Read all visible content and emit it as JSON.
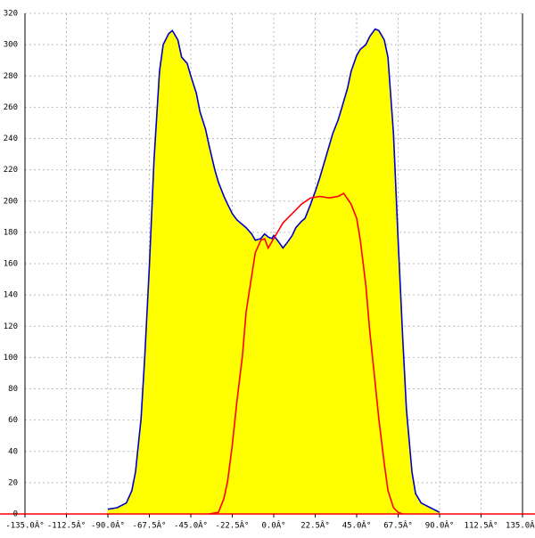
{
  "chart_data": {
    "type": "area",
    "xlim": [
      -135,
      135
    ],
    "xticks": [
      {
        "value": -135,
        "label": "-135.0Â°"
      },
      {
        "value": -112.5,
        "label": "-112.5Â°"
      },
      {
        "value": -90,
        "label": "-90.0Â°"
      },
      {
        "value": -67.5,
        "label": "-67.5Â°"
      },
      {
        "value": -45,
        "label": "-45.0Â°"
      },
      {
        "value": -22.5,
        "label": "-22.5Â°"
      },
      {
        "value": 0,
        "label": "0.0Â°"
      },
      {
        "value": 22.5,
        "label": "22.5Â°"
      },
      {
        "value": 45,
        "label": "45.0Â°"
      },
      {
        "value": 67.5,
        "label": "67.5Â°"
      },
      {
        "value": 90,
        "label": "90.0Â°"
      },
      {
        "value": 112.5,
        "label": "112.5Â°"
      },
      {
        "value": 135,
        "label": "135.0Â°"
      }
    ],
    "ylim": [
      0,
      320
    ],
    "yticks": [
      0,
      20,
      40,
      60,
      80,
      100,
      120,
      140,
      160,
      180,
      200,
      220,
      240,
      260,
      280,
      300,
      320
    ],
    "grid": true,
    "series": [
      {
        "color": "#0000cc",
        "fill": "#ffff00",
        "x": [
          -90,
          -85,
          -80,
          -77,
          -75,
          -72,
          -70,
          -67.5,
          -65,
          -62,
          -60,
          -57,
          -55,
          -52,
          -50,
          -47,
          -45,
          -42,
          -40,
          -37,
          -35,
          -32,
          -30,
          -27,
          -25,
          -22.5,
          -20,
          -17,
          -15,
          -12,
          -10,
          -7,
          -5,
          -3,
          -1,
          0,
          2,
          5,
          7,
          10,
          12,
          15,
          17,
          20,
          22.5,
          25,
          27,
          30,
          32,
          35,
          37,
          40,
          42,
          45,
          47,
          50,
          52,
          55,
          57,
          60,
          62,
          65,
          67.5,
          70,
          72,
          75,
          77,
          80,
          85,
          90
        ],
        "values": [
          3,
          4,
          7,
          15,
          27,
          61,
          100,
          158,
          226,
          283,
          300,
          307,
          309,
          303,
          292,
          288,
          280,
          269,
          257,
          246,
          235,
          220,
          212,
          203,
          198,
          192,
          188,
          185,
          183,
          179,
          175,
          176,
          179,
          177,
          176,
          178,
          175,
          170,
          173,
          178,
          183,
          187,
          189,
          198,
          206,
          215,
          223,
          235,
          243,
          252,
          260,
          272,
          283,
          293,
          297,
          300,
          305,
          310,
          309,
          303,
          292,
          243,
          175,
          112,
          67,
          27,
          13,
          7,
          4,
          1
        ]
      },
      {
        "color": "#ff0000",
        "x": [
          -35,
          -30,
          -27,
          -25,
          -22.5,
          -20,
          -17,
          -15,
          -12,
          -10,
          -7,
          -5,
          -3,
          0,
          3,
          5,
          10,
          15,
          20,
          25,
          30,
          35,
          38,
          42,
          45,
          47,
          50,
          52,
          55,
          57,
          60,
          62,
          65,
          67.5,
          70
        ],
        "values": [
          0,
          1,
          10,
          21,
          44,
          72,
          101,
          129,
          152,
          167,
          175,
          176,
          170,
          176,
          182,
          186,
          192,
          198,
          202,
          203,
          202,
          203,
          205,
          198,
          189,
          175,
          146,
          118,
          84,
          61,
          32,
          15,
          4,
          1,
          0
        ]
      }
    ]
  }
}
